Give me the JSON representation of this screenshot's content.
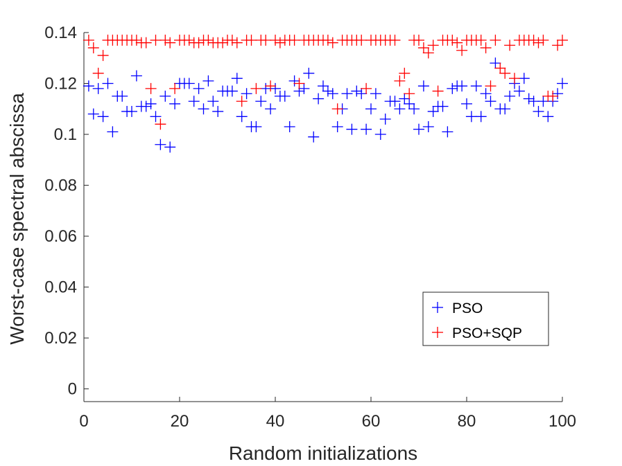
{
  "chart_data": {
    "type": "scatter",
    "xlabel": "Random initializations",
    "ylabel": "Worst-case spectral abscissa",
    "xlim": [
      0,
      100
    ],
    "ylim": [
      -0.005,
      0.14
    ],
    "xticks": [
      0,
      20,
      40,
      60,
      80,
      100
    ],
    "xtick_labels": [
      "0",
      "20",
      "40",
      "60",
      "80",
      "100"
    ],
    "yticks": [
      0,
      0.02,
      0.04,
      0.06,
      0.08,
      0.1,
      0.12,
      0.14
    ],
    "ytick_labels": [
      "0",
      "0.02",
      "0.04",
      "0.06",
      "0.08",
      "0.1",
      "0.12",
      "0.14"
    ],
    "grid": false,
    "legend_position": "bottom-right",
    "marker": "+",
    "x": [
      1,
      2,
      3,
      4,
      5,
      6,
      7,
      8,
      9,
      10,
      11,
      12,
      13,
      14,
      15,
      16,
      17,
      18,
      19,
      20,
      21,
      22,
      23,
      24,
      25,
      26,
      27,
      28,
      29,
      30,
      31,
      32,
      33,
      34,
      35,
      36,
      37,
      38,
      39,
      40,
      41,
      42,
      43,
      44,
      45,
      46,
      47,
      48,
      49,
      50,
      51,
      52,
      53,
      54,
      55,
      56,
      57,
      58,
      59,
      60,
      61,
      62,
      63,
      64,
      65,
      66,
      67,
      68,
      69,
      70,
      71,
      72,
      73,
      74,
      75,
      76,
      77,
      78,
      79,
      80,
      81,
      82,
      83,
      84,
      85,
      86,
      87,
      88,
      89,
      90,
      91,
      92,
      93,
      94,
      95,
      96,
      97,
      98,
      99,
      100
    ],
    "series": [
      {
        "name": "PSO",
        "color": "#0000ff",
        "values": [
          0.119,
          0.108,
          0.118,
          0.107,
          0.12,
          0.101,
          0.115,
          0.115,
          0.109,
          0.109,
          0.123,
          0.111,
          0.111,
          0.112,
          0.107,
          0.096,
          0.115,
          0.095,
          0.112,
          0.12,
          0.12,
          0.12,
          0.113,
          0.118,
          0.11,
          0.121,
          0.113,
          0.109,
          0.117,
          0.117,
          0.117,
          0.122,
          0.107,
          0.116,
          0.103,
          0.103,
          0.113,
          0.118,
          0.11,
          0.118,
          0.115,
          0.115,
          0.103,
          0.121,
          0.117,
          0.118,
          0.124,
          0.099,
          0.114,
          0.119,
          0.117,
          0.116,
          0.103,
          0.11,
          0.116,
          0.102,
          0.117,
          0.116,
          0.102,
          0.11,
          0.116,
          0.1,
          0.106,
          0.113,
          0.113,
          0.11,
          0.114,
          0.112,
          0.11,
          0.102,
          0.119,
          0.103,
          0.109,
          0.111,
          0.111,
          0.101,
          0.118,
          0.119,
          0.119,
          0.112,
          0.107,
          0.119,
          0.107,
          0.116,
          0.113,
          0.128,
          0.11,
          0.11,
          0.115,
          0.12,
          0.117,
          0.122,
          0.114,
          0.113,
          0.109,
          0.113,
          0.107,
          0.113,
          0.116,
          0.12
        ]
      },
      {
        "name": "PSO+SQP",
        "color": "#ff0000",
        "values": [
          0.137,
          0.134,
          0.124,
          0.131,
          0.137,
          0.137,
          0.137,
          0.137,
          0.137,
          0.137,
          0.137,
          0.136,
          0.136,
          0.118,
          0.137,
          0.104,
          0.137,
          0.136,
          0.118,
          0.137,
          0.137,
          0.137,
          0.136,
          0.136,
          0.137,
          0.137,
          0.136,
          0.136,
          0.136,
          0.137,
          0.137,
          0.136,
          0.113,
          0.137,
          0.137,
          0.118,
          0.137,
          0.137,
          0.119,
          0.137,
          0.136,
          0.137,
          0.137,
          0.137,
          0.12,
          0.137,
          0.137,
          0.137,
          0.137,
          0.137,
          0.137,
          0.136,
          0.11,
          0.137,
          0.137,
          0.137,
          0.137,
          0.137,
          0.118,
          0.137,
          0.137,
          0.137,
          0.137,
          0.137,
          0.137,
          0.121,
          0.124,
          0.116,
          0.137,
          0.137,
          0.134,
          0.132,
          0.135,
          0.117,
          0.137,
          0.137,
          0.137,
          0.136,
          0.133,
          0.137,
          0.137,
          0.137,
          0.137,
          0.134,
          0.119,
          0.137,
          0.126,
          0.124,
          0.135,
          0.122,
          0.137,
          0.137,
          0.137,
          0.137,
          0.136,
          0.137,
          0.115,
          0.115,
          0.135,
          0.137
        ]
      }
    ]
  }
}
